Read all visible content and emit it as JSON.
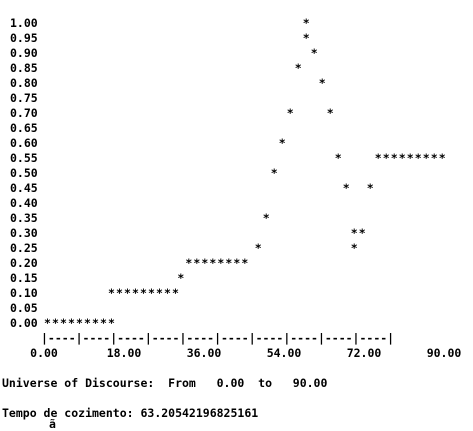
{
  "console": {
    "universe_line": "Universe of Discourse:  From   0.00  to   90.00",
    "result_line": "Tempo de cozimento: 63.20542196825161",
    "bottom_clip": "ã"
  },
  "chart_data": {
    "type": "scatter",
    "title": "",
    "xlabel": "",
    "ylabel": "",
    "xlim": [
      0,
      90
    ],
    "ylim": [
      0,
      1
    ],
    "grid": false,
    "legend": "none",
    "marker": "*",
    "y_ticks": [
      "1.00",
      "0.95",
      "0.90",
      "0.85",
      "0.80",
      "0.75",
      "0.70",
      "0.65",
      "0.60",
      "0.55",
      "0.50",
      "0.45",
      "0.40",
      "0.35",
      "0.30",
      "0.25",
      "0.20",
      "0.15",
      "0.10",
      "0.05",
      "0.00"
    ],
    "x_ticks": [
      "0.00",
      "18.00",
      "36.00",
      "54.00",
      "72.00",
      "90.00"
    ],
    "axis_text": "|----|----|----|----|----|----|----|----|----|----|",
    "points": [
      {
        "y": 1.0,
        "x": [
          59.0
        ]
      },
      {
        "y": 0.95,
        "x": [
          59.0
        ]
      },
      {
        "y": 0.9,
        "x": [
          60.8
        ]
      },
      {
        "y": 0.85,
        "x": [
          57.2
        ]
      },
      {
        "y": 0.8,
        "x": [
          62.6
        ]
      },
      {
        "y": 0.7,
        "x": [
          55.4,
          64.4
        ]
      },
      {
        "y": 0.6,
        "x": [
          53.6
        ]
      },
      {
        "y": 0.55,
        "x": [
          66.2,
          75.2,
          77.0,
          78.8,
          80.6,
          82.4,
          84.2,
          86.0,
          87.8,
          89.6
        ]
      },
      {
        "y": 0.5,
        "x": [
          51.8
        ]
      },
      {
        "y": 0.45,
        "x": [
          68.0,
          73.4
        ]
      },
      {
        "y": 0.35,
        "x": [
          50.0
        ]
      },
      {
        "y": 0.3,
        "x": [
          69.8,
          71.6
        ]
      },
      {
        "y": 0.25,
        "x": [
          48.2,
          69.8
        ]
      },
      {
        "y": 0.2,
        "x": [
          32.6,
          34.4,
          36.2,
          38.0,
          39.8,
          41.6,
          43.4,
          45.2
        ]
      },
      {
        "y": 0.15,
        "x": [
          30.8
        ]
      },
      {
        "y": 0.1,
        "x": [
          15.2,
          17.0,
          18.8,
          20.6,
          22.4,
          24.2,
          26.0,
          27.8,
          29.6
        ]
      },
      {
        "y": 0.0,
        "x": [
          0.8,
          2.6,
          4.4,
          6.2,
          8.0,
          9.8,
          11.6,
          13.4,
          15.2
        ]
      }
    ]
  }
}
